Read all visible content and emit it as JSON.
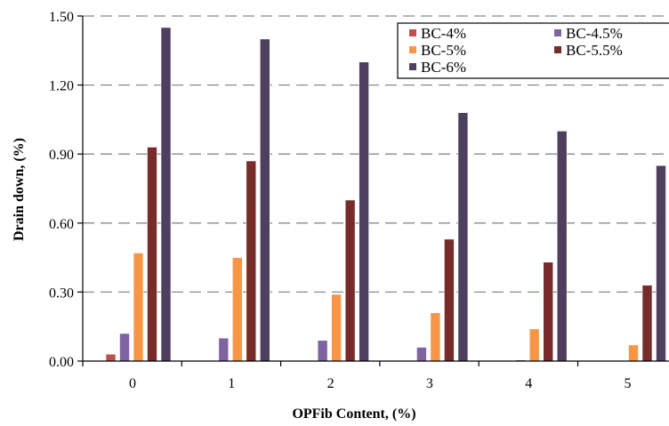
{
  "chart_data": {
    "type": "bar",
    "title": "",
    "xlabel": "OPFib Content, (%)",
    "ylabel": "Drain down, (%)",
    "categories": [
      "0",
      "1",
      "2",
      "3",
      "4",
      "5"
    ],
    "ylim": [
      0,
      1.5
    ],
    "yticks": [
      "0.00",
      "0.30",
      "0.60",
      "0.90",
      "1.20",
      "1.50"
    ],
    "grid": "horizontal dashed",
    "legend_position": "top-right",
    "series": [
      {
        "name": "BC-4%",
        "color": "#c0504d",
        "values": [
          0.03,
          0,
          0,
          0,
          0,
          0
        ]
      },
      {
        "name": "BC-4.5%",
        "color": "#8064a2",
        "values": [
          0.12,
          0.1,
          0.09,
          0.06,
          0.005,
          0
        ]
      },
      {
        "name": "BC-5%",
        "color": "#f79646",
        "values": [
          0.47,
          0.45,
          0.29,
          0.21,
          0.14,
          0.07
        ]
      },
      {
        "name": "BC-5.5%",
        "color": "#772c2a",
        "values": [
          0.93,
          0.87,
          0.7,
          0.53,
          0.43,
          0.33
        ]
      },
      {
        "name": "BC-6%",
        "color": "#4f3f5f",
        "values": [
          1.45,
          1.4,
          1.3,
          1.08,
          1.0,
          0.85
        ]
      }
    ]
  }
}
